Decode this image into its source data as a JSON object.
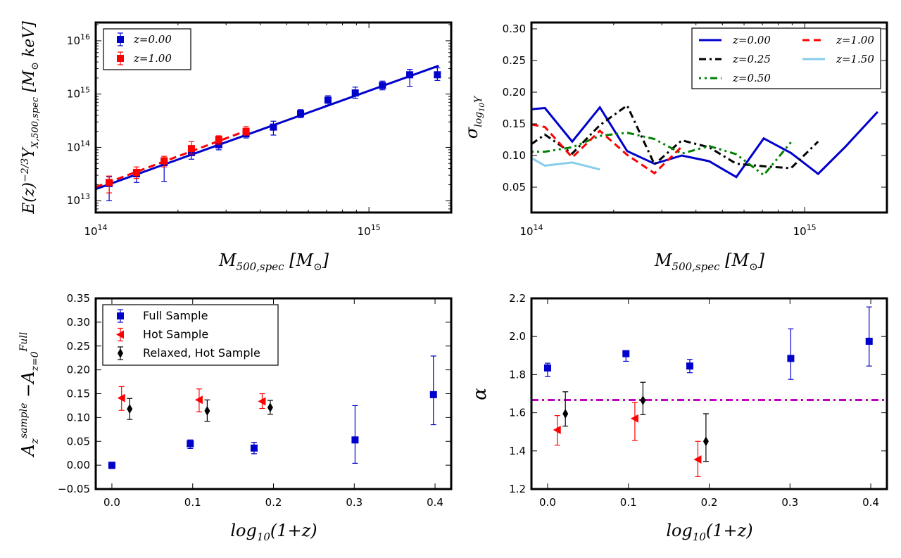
{
  "colors": {
    "blue": "#0000cc",
    "red": "#ff0000",
    "black": "#000000",
    "green": "#008000",
    "cyan": "#87ceeb",
    "magenta": "#bf00bf"
  },
  "chart_data": [
    {
      "type": "scatter",
      "panel": "top-left",
      "title": "",
      "xlabel": "M_500,spec [M_⊙]",
      "ylabel": "E(z)^-2/3 Y_X,500,spec [M_⊙ keV]",
      "xscale": "log",
      "yscale": "log",
      "xlim": [
        100000000000000.0,
        2000000000000000.0
      ],
      "ylim": [
        6000000000000.0,
        2.2e+16
      ],
      "xticks": [
        {
          "value": 100000000000000.0,
          "base": "10",
          "exp": "14"
        },
        {
          "value": 1000000000000000.0,
          "base": "10",
          "exp": "15"
        }
      ],
      "yticks": [
        {
          "value": 10000000000000.0,
          "base": "10",
          "exp": "13"
        },
        {
          "value": 100000000000000.0,
          "base": "10",
          "exp": "14"
        },
        {
          "value": 1000000000000000.0,
          "base": "10",
          "exp": "15"
        },
        {
          "value": 1e+16,
          "base": "10",
          "exp": "16"
        }
      ],
      "legend_position": "top-left",
      "legend": [
        {
          "label": "z=0.00",
          "color": "blue"
        },
        {
          "label": "z=1.00",
          "color": "red"
        }
      ],
      "series": [
        {
          "name": "z=0.00",
          "marker": "square",
          "color": "blue",
          "points": [
            {
              "x": 112000000000000.0,
              "y": 21000000000000.0,
              "lo": 10000000000000.0,
              "hi": 28000000000000.0
            },
            {
              "x": 141000000000000.0,
              "y": 32000000000000.0,
              "lo": 22000000000000.0,
              "hi": 38000000000000.0
            },
            {
              "x": 178000000000000.0,
              "y": 52000000000000.0,
              "lo": 23000000000000.0,
              "hi": 64000000000000.0
            },
            {
              "x": 224000000000000.0,
              "y": 80000000000000.0,
              "lo": 60000000000000.0,
              "hi": 100000000000000.0
            },
            {
              "x": 282000000000000.0,
              "y": 112000000000000.0,
              "lo": 90000000000000.0,
              "hi": 140000000000000.0
            },
            {
              "x": 355000000000000.0,
              "y": 180000000000000.0,
              "lo": 150000000000000.0,
              "hi": 220000000000000.0
            },
            {
              "x": 447000000000000.0,
              "y": 240000000000000.0,
              "lo": 170000000000000.0,
              "hi": 310000000000000.0
            },
            {
              "x": 562000000000000.0,
              "y": 430000000000000.0,
              "lo": 360000000000000.0,
              "hi": 510000000000000.0
            },
            {
              "x": 708000000000000.0,
              "y": 770000000000000.0,
              "lo": 620000000000000.0,
              "hi": 930000000000000.0
            },
            {
              "x": 891000000000000.0,
              "y": 1050000000000000.0,
              "lo": 830000000000000.0,
              "hi": 1350000000000000.0
            },
            {
              "x": 1120000000000000.0,
              "y": 1450000000000000.0,
              "lo": 1200000000000000.0,
              "hi": 1750000000000000.0
            },
            {
              "x": 1410000000000000.0,
              "y": 2300000000000000.0,
              "lo": 1400000000000000.0,
              "hi": 2900000000000000.0
            },
            {
              "x": 1780000000000000.0,
              "y": 2300000000000000.0,
              "lo": 1800000000000000.0,
              "hi": 3100000000000000.0
            }
          ],
          "fit": [
            {
              "x": 100000000000000.0,
              "y": 16500000000000.0
            },
            {
              "x": 1800000000000000.0,
              "y": 3400000000000000.0
            }
          ]
        },
        {
          "name": "z=1.00",
          "marker": "square",
          "color": "red",
          "points": [
            {
              "x": 112000000000000.0,
              "y": 22000000000000.0,
              "lo": 14000000000000.0,
              "hi": 29000000000000.0
            },
            {
              "x": 141000000000000.0,
              "y": 34000000000000.0,
              "lo": 26000000000000.0,
              "hi": 43000000000000.0
            },
            {
              "x": 178000000000000.0,
              "y": 56000000000000.0,
              "lo": 43000000000000.0,
              "hi": 68000000000000.0
            },
            {
              "x": 224000000000000.0,
              "y": 95000000000000.0,
              "lo": 75000000000000.0,
              "hi": 128000000000000.0
            },
            {
              "x": 282000000000000.0,
              "y": 140000000000000.0,
              "lo": 115000000000000.0,
              "hi": 165000000000000.0
            },
            {
              "x": 355000000000000.0,
              "y": 200000000000000.0,
              "lo": 170000000000000.0,
              "hi": 245000000000000.0
            }
          ],
          "fit": [
            {
              "x": 100000000000000.0,
              "y": 18000000000000.0
            },
            {
              "x": 360000000000000.0,
              "y": 210000000000000.0
            }
          ]
        }
      ]
    },
    {
      "type": "line",
      "panel": "top-right",
      "title": "",
      "xlabel": "M_500,spec [M_⊙]",
      "ylabel": "σ_log10 Y",
      "xscale": "log",
      "yscale": "linear",
      "xlim": [
        100000000000000.0,
        2000000000000000.0
      ],
      "ylim": [
        0.01,
        0.31
      ],
      "xticks": [
        {
          "value": 100000000000000.0,
          "base": "10",
          "exp": "14"
        },
        {
          "value": 1000000000000000.0,
          "base": "10",
          "exp": "15"
        }
      ],
      "yticks": [
        {
          "value": 0.05,
          "label": "0.05"
        },
        {
          "value": 0.1,
          "label": "0.10"
        },
        {
          "value": 0.15,
          "label": "0.15"
        },
        {
          "value": 0.2,
          "label": "0.20"
        },
        {
          "value": 0.25,
          "label": "0.25"
        },
        {
          "value": 0.3,
          "label": "0.30"
        }
      ],
      "legend_position": "top-right",
      "legend": [
        {
          "label": "z=0.00",
          "color": "blue",
          "dash": "solid"
        },
        {
          "label": "z=1.00",
          "color": "red",
          "dash": "dashed"
        },
        {
          "label": "z=0.25",
          "color": "black",
          "dash": "dashdot"
        },
        {
          "label": "z=1.50",
          "color": "cyan",
          "dash": "solid"
        },
        {
          "label": "z=0.50",
          "color": "green",
          "dash": "dotdash"
        }
      ],
      "series": [
        {
          "name": "z=0.00",
          "color": "blue",
          "dash": "solid",
          "x": [
            100000000000000.0,
            112000000000000.0,
            141000000000000.0,
            178000000000000.0,
            224000000000000.0,
            282000000000000.0,
            355000000000000.0,
            447000000000000.0,
            562000000000000.0,
            708000000000000.0,
            891000000000000.0,
            1120000000000000.0,
            1410000000000000.0,
            1850000000000000.0
          ],
          "y": [
            0.173,
            0.175,
            0.122,
            0.176,
            0.107,
            0.087,
            0.1,
            0.091,
            0.066,
            0.127,
            0.104,
            0.071,
            0.114,
            0.169
          ]
        },
        {
          "name": "z=0.25",
          "color": "black",
          "dash": "dashdot",
          "x": [
            100000000000000.0,
            112000000000000.0,
            141000000000000.0,
            178000000000000.0,
            224000000000000.0,
            282000000000000.0,
            355000000000000.0,
            447000000000000.0,
            562000000000000.0,
            708000000000000.0,
            891000000000000.0,
            1120000000000000.0
          ],
          "y": [
            0.118,
            0.133,
            0.103,
            0.148,
            0.179,
            0.086,
            0.124,
            0.113,
            0.087,
            0.083,
            0.08,
            0.122
          ]
        },
        {
          "name": "z=0.50",
          "color": "green",
          "dash": "dotdash",
          "x": [
            100000000000000.0,
            112000000000000.0,
            141000000000000.0,
            178000000000000.0,
            224000000000000.0,
            282000000000000.0,
            355000000000000.0,
            447000000000000.0,
            562000000000000.0,
            708000000000000.0,
            891000000000000.0
          ],
          "y": [
            0.106,
            0.106,
            0.113,
            0.131,
            0.136,
            0.126,
            0.103,
            0.115,
            0.102,
            0.069,
            0.121
          ]
        },
        {
          "name": "z=1.00",
          "color": "red",
          "dash": "dashed",
          "x": [
            100000000000000.0,
            112000000000000.0,
            141000000000000.0,
            178000000000000.0,
            224000000000000.0,
            282000000000000.0,
            355000000000000.0
          ],
          "y": [
            0.149,
            0.145,
            0.097,
            0.139,
            0.101,
            0.072,
            0.114
          ]
        },
        {
          "name": "z=1.50",
          "color": "cyan",
          "dash": "solid",
          "x": [
            100000000000000.0,
            112000000000000.0,
            141000000000000.0,
            178000000000000.0
          ],
          "y": [
            0.096,
            0.084,
            0.089,
            0.078
          ]
        }
      ]
    },
    {
      "type": "scatter",
      "panel": "bottom-left",
      "title": "",
      "xlabel": "log10(1+z)",
      "ylabel": "A_z^sample − A_z=0^Full",
      "xlim": [
        -0.02,
        0.42
      ],
      "ylim": [
        -0.05,
        0.35
      ],
      "xticks": [
        {
          "value": 0.0,
          "label": "0.0"
        },
        {
          "value": 0.1,
          "label": "0.1"
        },
        {
          "value": 0.2,
          "label": "0.2"
        },
        {
          "value": 0.3,
          "label": "0.3"
        },
        {
          "value": 0.4,
          "label": "0.4"
        }
      ],
      "yticks": [
        {
          "value": -0.05,
          "label": "−0.05"
        },
        {
          "value": 0.0,
          "label": "0.00"
        },
        {
          "value": 0.05,
          "label": "0.05"
        },
        {
          "value": 0.1,
          "label": "0.10"
        },
        {
          "value": 0.15,
          "label": "0.15"
        },
        {
          "value": 0.2,
          "label": "0.20"
        },
        {
          "value": 0.25,
          "label": "0.25"
        },
        {
          "value": 0.3,
          "label": "0.30"
        },
        {
          "value": 0.35,
          "label": "0.35"
        }
      ],
      "legend_position": "top-left",
      "legend": [
        {
          "label": "Full Sample",
          "color": "blue",
          "marker": "square"
        },
        {
          "label": "Hot Sample",
          "color": "red",
          "marker": "triangle-left"
        },
        {
          "label": "Relaxed, Hot Sample",
          "color": "black",
          "marker": "diamond"
        }
      ],
      "series": [
        {
          "name": "Full Sample",
          "marker": "square",
          "color": "blue",
          "points": [
            {
              "x": 0.0,
              "y": 0.0,
              "lo": -0.007,
              "hi": 0.006
            },
            {
              "x": 0.097,
              "y": 0.045,
              "lo": 0.035,
              "hi": 0.053
            },
            {
              "x": 0.176,
              "y": 0.036,
              "lo": 0.024,
              "hi": 0.048
            },
            {
              "x": 0.301,
              "y": 0.053,
              "lo": 0.004,
              "hi": 0.125
            },
            {
              "x": 0.398,
              "y": 0.148,
              "lo": 0.085,
              "hi": 0.229
            }
          ]
        },
        {
          "name": "Hot Sample",
          "marker": "triangle-left",
          "color": "red",
          "points": [
            {
              "x": 0.012,
              "y": 0.141,
              "lo": 0.115,
              "hi": 0.165
            },
            {
              "x": 0.108,
              "y": 0.137,
              "lo": 0.112,
              "hi": 0.16
            },
            {
              "x": 0.186,
              "y": 0.134,
              "lo": 0.119,
              "hi": 0.15
            }
          ]
        },
        {
          "name": "Relaxed, Hot Sample",
          "marker": "diamond",
          "color": "black",
          "points": [
            {
              "x": 0.022,
              "y": 0.118,
              "lo": 0.096,
              "hi": 0.14
            },
            {
              "x": 0.118,
              "y": 0.114,
              "lo": 0.092,
              "hi": 0.137
            },
            {
              "x": 0.196,
              "y": 0.121,
              "lo": 0.107,
              "hi": 0.136
            }
          ]
        }
      ]
    },
    {
      "type": "scatter",
      "panel": "bottom-right",
      "title": "",
      "xlabel": "log10(1+z)",
      "ylabel": "α",
      "xlim": [
        -0.02,
        0.42
      ],
      "ylim": [
        1.2,
        2.2
      ],
      "xticks": [
        {
          "value": 0.0,
          "label": "0.0"
        },
        {
          "value": 0.1,
          "label": "0.1"
        },
        {
          "value": 0.2,
          "label": "0.2"
        },
        {
          "value": 0.3,
          "label": "0.3"
        },
        {
          "value": 0.4,
          "label": "0.4"
        }
      ],
      "yticks": [
        {
          "value": 1.2,
          "label": "1.2"
        },
        {
          "value": 1.4,
          "label": "1.4"
        },
        {
          "value": 1.6,
          "label": "1.6"
        },
        {
          "value": 1.8,
          "label": "1.8"
        },
        {
          "value": 2.0,
          "label": "2.0"
        },
        {
          "value": 2.2,
          "label": "2.2"
        }
      ],
      "reference_line": {
        "y": 1.667,
        "color": "magenta",
        "dash": "dashdot"
      },
      "series": [
        {
          "name": "Full Sample",
          "marker": "square",
          "color": "blue",
          "points": [
            {
              "x": 0.0,
              "y": 1.835,
              "lo": 1.79,
              "hi": 1.86
            },
            {
              "x": 0.097,
              "y": 1.91,
              "lo": 1.87,
              "hi": 1.925
            },
            {
              "x": 0.176,
              "y": 1.845,
              "lo": 1.81,
              "hi": 1.88
            },
            {
              "x": 0.301,
              "y": 1.885,
              "lo": 1.775,
              "hi": 2.04
            },
            {
              "x": 0.398,
              "y": 1.975,
              "lo": 1.845,
              "hi": 2.155
            }
          ]
        },
        {
          "name": "Hot Sample",
          "marker": "triangle-left",
          "color": "red",
          "points": [
            {
              "x": 0.012,
              "y": 1.51,
              "lo": 1.43,
              "hi": 1.585
            },
            {
              "x": 0.108,
              "y": 1.57,
              "lo": 1.455,
              "hi": 1.655
            },
            {
              "x": 0.186,
              "y": 1.355,
              "lo": 1.265,
              "hi": 1.45
            }
          ]
        },
        {
          "name": "Relaxed, Hot Sample",
          "marker": "diamond",
          "color": "black",
          "points": [
            {
              "x": 0.022,
              "y": 1.595,
              "lo": 1.53,
              "hi": 1.71
            },
            {
              "x": 0.118,
              "y": 1.665,
              "lo": 1.59,
              "hi": 1.76
            },
            {
              "x": 0.196,
              "y": 1.45,
              "lo": 1.345,
              "hi": 1.595
            }
          ]
        }
      ]
    }
  ]
}
